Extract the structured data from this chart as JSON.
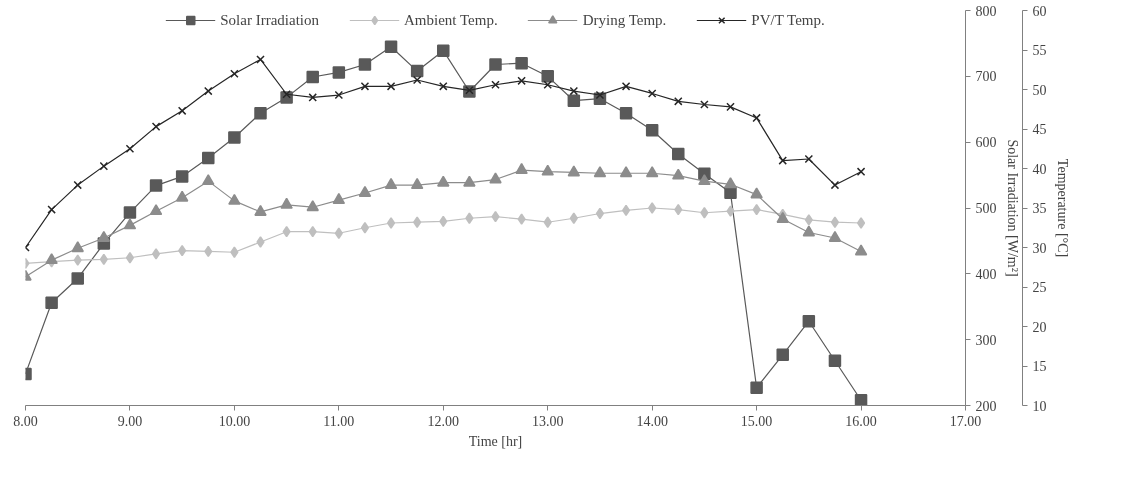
{
  "chart_data": {
    "type": "line",
    "xlabel": "Time [hr]",
    "ylabel": "Solar Irradiation [W/m²]",
    "y2label": "Temperature [°C]",
    "x": [
      8,
      8.25,
      8.5,
      8.75,
      9,
      9.25,
      9.5,
      9.75,
      10,
      10.25,
      10.5,
      10.75,
      11,
      11.25,
      11.5,
      11.75,
      12,
      12.25,
      12.5,
      12.75,
      13,
      13.25,
      13.5,
      13.75,
      14,
      14.25,
      14.5,
      14.75,
      15,
      15.25,
      15.5,
      15.75,
      16
    ],
    "series": [
      {
        "name": "Solar Irradiation",
        "color": "#595959",
        "marker": "square",
        "values": [
          248,
          356,
          393,
          446,
          493,
          534,
          548,
          576,
          607,
          644,
          668,
          699,
          706,
          718,
          745,
          708,
          739,
          677,
          718,
          720,
          700,
          663,
          666,
          644,
          618,
          582,
          552,
          523,
          227,
          277,
          328,
          268,
          208
        ]
      },
      {
        "name": "Ambient Temp.",
        "color": "#bfbfbf",
        "marker": "diamond",
        "axis": "y2",
        "values": [
          28.0,
          28.2,
          28.4,
          28.5,
          28.7,
          29.2,
          29.6,
          29.5,
          29.4,
          30.7,
          32.0,
          32.0,
          31.8,
          32.5,
          33.1,
          33.2,
          33.3,
          33.7,
          33.9,
          33.6,
          33.2,
          33.7,
          34.3,
          34.7,
          35.0,
          34.8,
          34.4,
          34.6,
          34.8,
          34.2,
          33.5,
          33.2,
          33.1
        ]
      },
      {
        "name": "Drying Temp.",
        "color": "#8c8c8c",
        "marker": "triangle",
        "axis": "y2",
        "values": [
          26.3,
          28.4,
          29.9,
          31.2,
          32.8,
          34.6,
          36.3,
          38.4,
          35.9,
          34.5,
          35.4,
          35.1,
          36.0,
          36.9,
          37.9,
          37.9,
          38.2,
          38.2,
          38.6,
          39.8,
          39.6,
          39.5,
          39.4,
          39.4,
          39.4,
          39.1,
          38.4,
          38.0,
          36.7,
          33.6,
          31.9,
          31.2,
          29.5
        ]
      },
      {
        "name": "PV/T Temp.",
        "color": "#262626",
        "marker": "cross",
        "axis": "y2",
        "values": [
          30.0,
          34.8,
          37.9,
          40.3,
          42.5,
          45.3,
          47.3,
          49.8,
          52.0,
          53.8,
          49.4,
          49.0,
          49.3,
          50.4,
          50.4,
          51.2,
          50.4,
          49.9,
          50.6,
          51.1,
          50.6,
          49.8,
          49.3,
          50.4,
          49.5,
          48.5,
          48.1,
          47.8,
          46.4,
          41.0,
          41.2,
          37.9,
          39.6
        ]
      }
    ],
    "xlim": [
      8,
      17
    ],
    "xticks": [
      {
        "value": 8,
        "label": "8.00"
      },
      {
        "value": 9,
        "label": "9.00"
      },
      {
        "value": 10,
        "label": "10.00"
      },
      {
        "value": 11,
        "label": "11.00"
      },
      {
        "value": 12,
        "label": "12.00"
      },
      {
        "value": 13,
        "label": "13.00"
      },
      {
        "value": 14,
        "label": "14.00"
      },
      {
        "value": 15,
        "label": "15.00"
      },
      {
        "value": 16,
        "label": "16.00"
      },
      {
        "value": 17,
        "label": "17.00"
      }
    ],
    "ylim": [
      200,
      800
    ],
    "yticks": [
      200,
      300,
      400,
      500,
      600,
      700,
      800
    ],
    "y2lim": [
      10,
      60
    ],
    "y2ticks": [
      10,
      15,
      20,
      25,
      30,
      35,
      40,
      45,
      50,
      55,
      60
    ],
    "grid": false,
    "legend": "top",
    "line_style": "solid"
  }
}
